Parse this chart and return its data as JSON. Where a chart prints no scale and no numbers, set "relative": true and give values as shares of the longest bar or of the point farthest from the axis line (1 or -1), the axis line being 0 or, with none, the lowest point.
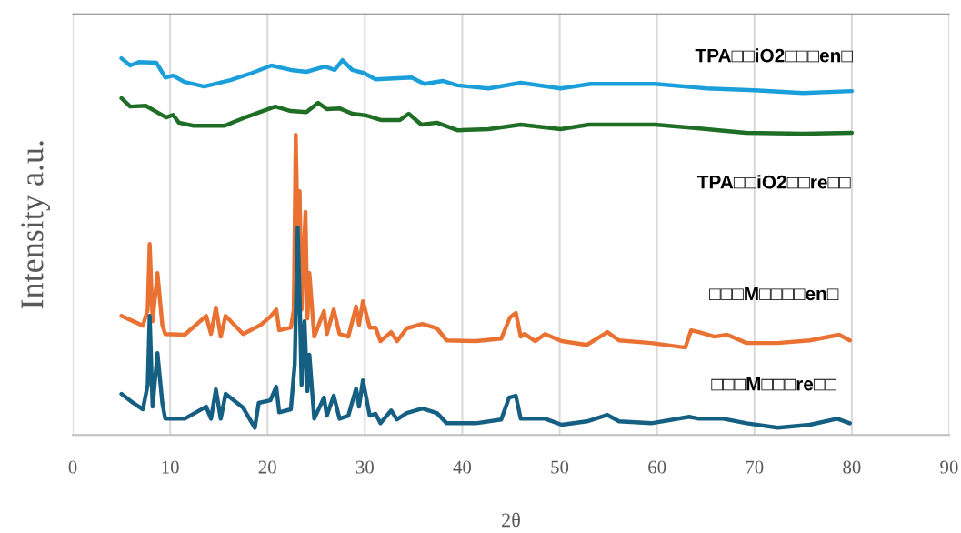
{
  "chart_data": {
    "type": "line",
    "xlabel": "2θ",
    "ylabel": "Intensity a.u.",
    "relative": true,
    "grid": "x",
    "xlim": [
      0,
      90
    ],
    "xticks": [
      0,
      10,
      20,
      30,
      40,
      50,
      60,
      70,
      80,
      90
    ],
    "series": [
      {
        "name": "TPA□□iO2□□□en□",
        "color": "#1a9fdb",
        "x": [
          5.0,
          5.9,
          6.8,
          8.6,
          9.5,
          10.3,
          11.5,
          13.5,
          16.2,
          18.4,
          20.4,
          22.4,
          24.0,
          25.9,
          26.9,
          27.7,
          28.7,
          29.9,
          31.1,
          34.8,
          36.1,
          38.0,
          39.5,
          42.7,
          46.0,
          50.1,
          53.2,
          59.8,
          65.1,
          70.0,
          75.0,
          80.0
        ],
        "values": [
          1.0,
          0.981,
          0.99,
          0.988,
          0.949,
          0.954,
          0.937,
          0.925,
          0.942,
          0.961,
          0.981,
          0.969,
          0.964,
          0.978,
          0.969,
          0.995,
          0.969,
          0.961,
          0.944,
          0.949,
          0.932,
          0.94,
          0.928,
          0.92,
          0.935,
          0.92,
          0.932,
          0.932,
          0.92,
          0.915,
          0.908,
          0.913
        ]
      },
      {
        "name": "TPA□□iO2□□re□□",
        "color": "#1e6e25",
        "x": [
          5.0,
          5.9,
          7.5,
          9.6,
          10.3,
          10.9,
          12.4,
          15.6,
          17.5,
          20.8,
          22.4,
          24.0,
          25.2,
          26.1,
          27.4,
          28.7,
          30.2,
          31.7,
          33.6,
          34.5,
          35.8,
          37.4,
          39.5,
          42.7,
          46.0,
          50.1,
          53.0,
          59.8,
          65.1,
          69.1,
          75.0,
          80.0
        ],
        "values": [
          0.894,
          0.872,
          0.874,
          0.843,
          0.85,
          0.829,
          0.821,
          0.821,
          0.841,
          0.872,
          0.86,
          0.857,
          0.882,
          0.865,
          0.867,
          0.853,
          0.848,
          0.836,
          0.836,
          0.853,
          0.824,
          0.829,
          0.809,
          0.812,
          0.824,
          0.812,
          0.824,
          0.824,
          0.812,
          0.802,
          0.8,
          0.802
        ]
      },
      {
        "name": "□□□M□□□□en□",
        "color": "#e97132",
        "x": [
          5.0,
          6.2,
          7.2,
          7.7,
          7.9,
          8.2,
          8.7,
          9.2,
          9.5,
          11.5,
          13.7,
          14.2,
          14.7,
          15.2,
          15.7,
          17.5,
          19.3,
          20.3,
          20.9,
          21.2,
          22.4,
          22.7,
          22.9,
          23.2,
          23.3,
          23.5,
          23.9,
          24.1,
          24.3,
          24.8,
          25.8,
          26.1,
          26.8,
          27.4,
          28.3,
          29.1,
          29.4,
          29.8,
          30.5,
          31.1,
          31.6,
          32.7,
          33.3,
          34.3,
          35.9,
          37.4,
          38.4,
          41.4,
          44.0,
          44.9,
          45.5,
          46.0,
          46.4,
          47.5,
          48.5,
          50.2,
          52.8,
          54.9,
          56.1,
          59.4,
          62.9,
          63.5,
          64.3,
          65.9,
          67.2,
          69.2,
          72.4,
          75.7,
          78.7,
          79.8
        ],
        "values": [
          0.316,
          0.302,
          0.29,
          0.333,
          0.507,
          0.302,
          0.43,
          0.292,
          0.268,
          0.266,
          0.316,
          0.268,
          0.338,
          0.261,
          0.316,
          0.268,
          0.292,
          0.314,
          0.333,
          0.278,
          0.285,
          0.333,
          0.797,
          0.382,
          0.647,
          0.333,
          0.592,
          0.309,
          0.43,
          0.261,
          0.329,
          0.268,
          0.333,
          0.268,
          0.261,
          0.341,
          0.292,
          0.355,
          0.285,
          0.285,
          0.249,
          0.273,
          0.249,
          0.283,
          0.295,
          0.283,
          0.251,
          0.249,
          0.256,
          0.312,
          0.324,
          0.261,
          0.268,
          0.249,
          0.268,
          0.249,
          0.239,
          0.273,
          0.251,
          0.244,
          0.232,
          0.278,
          0.273,
          0.261,
          0.266,
          0.244,
          0.244,
          0.251,
          0.266,
          0.251
        ]
      },
      {
        "name": "□□□M□□□re□□",
        "color": "#156082",
        "x": [
          5.0,
          6.2,
          7.2,
          7.7,
          7.9,
          8.2,
          8.7,
          9.2,
          9.5,
          11.5,
          13.7,
          14.2,
          14.7,
          15.2,
          15.7,
          17.5,
          18.7,
          19.1,
          20.3,
          20.9,
          21.2,
          22.4,
          22.8,
          23.1,
          23.3,
          23.5,
          23.8,
          24.1,
          24.3,
          24.8,
          25.8,
          26.1,
          26.8,
          27.4,
          28.3,
          29.1,
          29.4,
          29.8,
          30.5,
          31.1,
          31.6,
          32.7,
          33.3,
          34.3,
          35.9,
          37.4,
          38.4,
          41.4,
          44.0,
          44.8,
          45.5,
          46.0,
          47.5,
          48.5,
          50.2,
          52.8,
          54.9,
          56.1,
          59.4,
          63.3,
          64.3,
          66.8,
          69.2,
          72.4,
          75.7,
          78.5,
          79.8
        ],
        "values": [
          0.109,
          0.085,
          0.068,
          0.133,
          0.316,
          0.075,
          0.217,
          0.085,
          0.043,
          0.043,
          0.075,
          0.043,
          0.121,
          0.043,
          0.109,
          0.072,
          0.019,
          0.085,
          0.092,
          0.128,
          0.06,
          0.068,
          0.188,
          0.551,
          0.365,
          0.133,
          0.302,
          0.116,
          0.213,
          0.043,
          0.099,
          0.051,
          0.104,
          0.043,
          0.051,
          0.123,
          0.075,
          0.145,
          0.051,
          0.056,
          0.031,
          0.065,
          0.041,
          0.058,
          0.07,
          0.058,
          0.031,
          0.031,
          0.041,
          0.099,
          0.104,
          0.043,
          0.043,
          0.043,
          0.027,
          0.036,
          0.053,
          0.036,
          0.031,
          0.048,
          0.043,
          0.043,
          0.031,
          0.019,
          0.027,
          0.043,
          0.031
        ]
      }
    ]
  }
}
